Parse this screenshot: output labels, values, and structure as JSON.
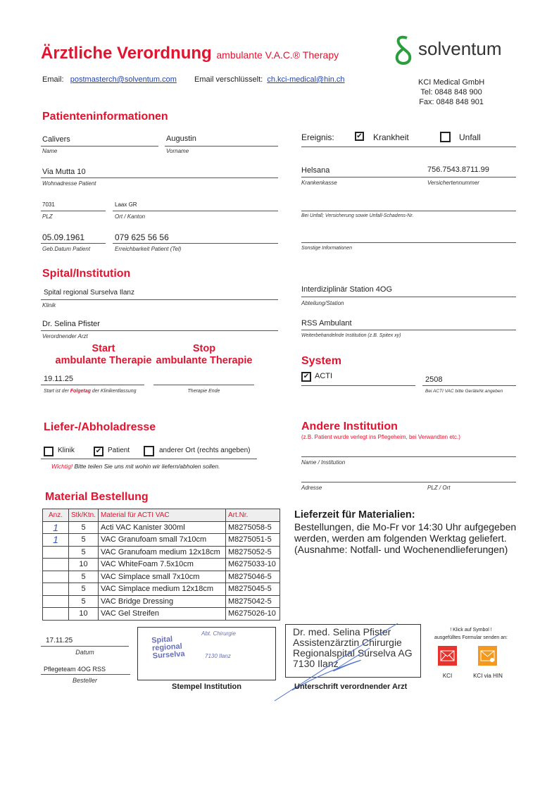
{
  "header": {
    "title": "Ärztliche Verordnung",
    "subtitle": "ambulante V.A.C.® Therapy",
    "logo_text": "solventum",
    "email_label": "Email:",
    "email": "postmasterch@solventum.com",
    "enc_label": "Email verschlüsselt:",
    "enc_email": "ch.kci-medical@hin.ch",
    "company": "KCI Medical GmbH",
    "tel": "Tel: 0848 848 900",
    "fax": "Fax: 0848 848 901"
  },
  "patient": {
    "heading": "Patienteninformationen",
    "name": "Calivers",
    "name_label": "Name",
    "vorname": "Augustin",
    "vorname_label": "Vorname",
    "address": "Via Mutta 10",
    "address_label": "Wohnadresse Patient",
    "plz": "7031",
    "plz_label": "PLZ",
    "ort": "Laax GR",
    "ort_label": "Ort / Kanton",
    "dob": "05.09.1961",
    "dob_label": "Geb.Datum Patient",
    "phone": "079 625 56 56",
    "phone_label": "Erreichbarkeit Patient (Tel)"
  },
  "event": {
    "label": "Ereignis:",
    "krankheit": "Krankheit",
    "krankheit_checked": true,
    "unfall": "Unfall",
    "unfall_checked": false,
    "kasse": "Helsana",
    "kasse_label": "Krankenkasse",
    "versnr": "756.7543.8711.99",
    "versnr_label": "Versichertennummer",
    "unfall_label": "Bei Unfall; Versicherung sowie Unfall-Schadens-Nr.",
    "sonstige_label": "Sonstige Informationen"
  },
  "spital": {
    "heading": "Spital/Institution",
    "klinik": "Spital regional Surselva Ilanz",
    "klinik_label": "Klinik",
    "arzt": "Dr. Selina Pfister",
    "arzt_label": "Verordnender Arzt",
    "station": "Interdiziplinär Station 4OG",
    "station_label": "Abteilung/Station",
    "weiter": "RSS Ambulant",
    "weiter_label": "Weiterbehandelnde Institution (z.B. Spitex xy)"
  },
  "therapy": {
    "start_h1": "Start",
    "start_h2": "ambulante Therapie",
    "stop_h1": "Stop",
    "stop_h2": "ambulante Therapie",
    "start": "19.11.25",
    "start_label_a": "Start ist der ",
    "start_label_b": "Folgetag",
    "start_label_c": " der Klinikentlassung",
    "stop_label": "Therapie Ende"
  },
  "system": {
    "heading": "System",
    "acti": "ACTI",
    "acti_checked": true,
    "geraet": "2508",
    "geraet_label": "Bei ACTI VAC bitte GerätеNr.angeben"
  },
  "liefer": {
    "heading": "Liefer-/Abholadresse",
    "klinik": "Klinik",
    "patient": "Patient",
    "anderer": "anderer Ort  (rechts angeben)",
    "patient_checked": true,
    "wichtig": "Wichtig!",
    "hint": " Bitte teilen Sie uns mit wohin wir liefern/abholen sollen."
  },
  "andere": {
    "heading": "Andere Institution",
    "sub": "(z.B. Patient wurde verlegt ins Pflegeheim, bei Verwandten etc.)",
    "name_label": "Name / Institution",
    "adresse_label": "Adresse",
    "plz_label": "PLZ / Ort"
  },
  "material": {
    "heading": "Material Bestellung",
    "headers": [
      "Anz.",
      "Stk/Ktn.",
      "Material für ACTI VAC",
      "Art.Nr."
    ],
    "rows": [
      [
        "1",
        "5",
        "Acti VAC Kanister 300ml",
        "M8275058-5"
      ],
      [
        "1",
        "5",
        "VAC Granufoam small 7x10cm",
        "M8275051-5"
      ],
      [
        "",
        "5",
        "VAC Granufoam medium 12x18cm",
        "M8275052-5"
      ],
      [
        "",
        "10",
        "VAC WhiteFoam 7.5x10cm",
        "M6275033-10"
      ],
      [
        "",
        "5",
        "VAC Simplace small 7x10cm",
        "M8275046-5"
      ],
      [
        "",
        "5",
        "VAC Simplace medium 12x18cm",
        "M8275045-5"
      ],
      [
        "",
        "5",
        "VAC Bridge Dressing",
        "M8275042-5"
      ],
      [
        "",
        "10",
        "VAC Gel Streifen",
        "M6275026-10"
      ]
    ]
  },
  "lieferzeit": {
    "title": "Lieferzeit für Materialien:",
    "l1": "Bestellungen, die Mo-Fr vor 14:30 Uhr aufgegeben",
    "l2": "werden, werden am folgenden Werktag geliefert.",
    "l3": "(Ausnahme: Notfall- und Wochenendlieferungen)"
  },
  "footer": {
    "datum": "17.11.25",
    "datum_label": "Datum",
    "besteller": "Pflegeteam 4OG RSS",
    "besteller_label": "Besteller",
    "stamp_l1": "Spital",
    "stamp_l2": "regional",
    "stamp_l3": "Surselva",
    "stamp_abt": "Abt. Chirurgie",
    "stamp_ort": "7130 Ilanz",
    "stamp_label": "Stempel Institution",
    "doc_l1": "Dr. med. Selina Pfister",
    "doc_l2": "Assistenzärztin Chirurgie",
    "doc_l3": "Regionalspital Surselva AG",
    "doc_l4": "7130 Ilanz",
    "sign_label": "Unterschrift verordnender Arzt",
    "klick1": "! Klick auf Symbol !",
    "klick2": "ausgefülltes Formular senden an:",
    "kci": "KCI",
    "kci_hin": "KCI via HIN"
  },
  "colors": {
    "red": "#e2132f",
    "green": "#2a9d3c",
    "mail_red": "#e8332c",
    "mail_orange": "#f39a1e"
  }
}
